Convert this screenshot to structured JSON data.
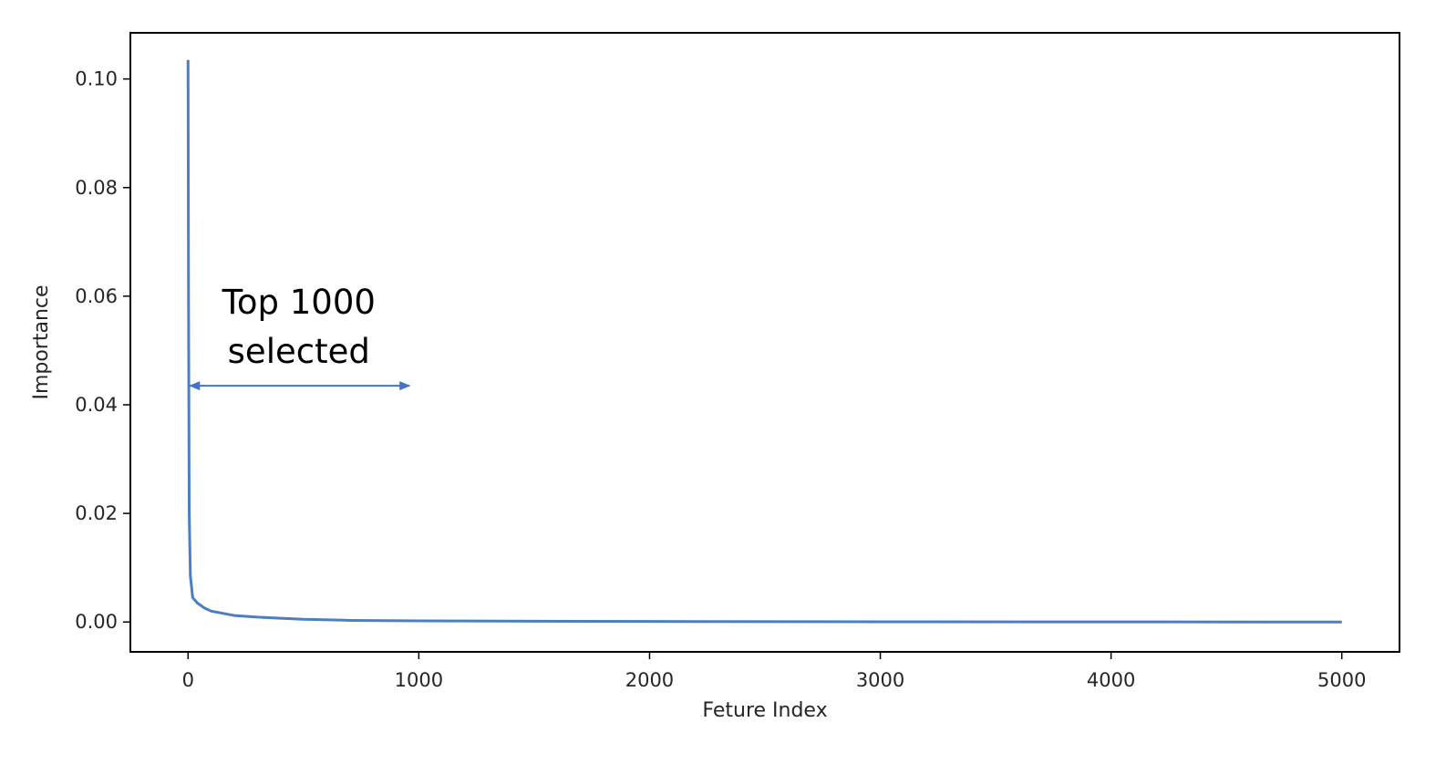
{
  "chart_data": {
    "type": "line",
    "title": "",
    "xlabel": "Feture Index",
    "ylabel": "Importance",
    "xlim": [
      -250,
      5250
    ],
    "ylim": [
      -0.0055,
      0.1085
    ],
    "xticks": [
      0,
      1000,
      2000,
      3000,
      4000,
      5000
    ],
    "xtick_labels": [
      "0",
      "1000",
      "2000",
      "3000",
      "4000",
      "5000"
    ],
    "yticks": [
      0.0,
      0.02,
      0.04,
      0.06,
      0.08,
      0.1
    ],
    "ytick_labels": [
      "0.00",
      "0.02",
      "0.04",
      "0.06",
      "0.08",
      "0.10"
    ],
    "grid": false,
    "legend": "none",
    "line_color": "#4c7fc0",
    "series": [
      {
        "x": [
          0,
          2,
          5,
          10,
          20,
          40,
          70,
          100,
          150,
          200,
          300,
          400,
          500,
          700,
          1000,
          1500,
          2000,
          3000,
          4000,
          5000
        ],
        "y": [
          0.1035,
          0.06,
          0.02,
          0.0085,
          0.0045,
          0.0035,
          0.0026,
          0.002,
          0.0016,
          0.0012,
          0.0009,
          0.0007,
          0.0005,
          0.0003,
          0.0002,
          0.00015,
          0.0001,
          5e-05,
          2e-05,
          0.0
        ]
      }
    ],
    "annotation": {
      "lines": [
        "Top 1000",
        "selected"
      ],
      "arrow_x": [
        0,
        960
      ],
      "arrow_y": 0.0435,
      "text_x": 480,
      "color": "#4472c4"
    }
  }
}
